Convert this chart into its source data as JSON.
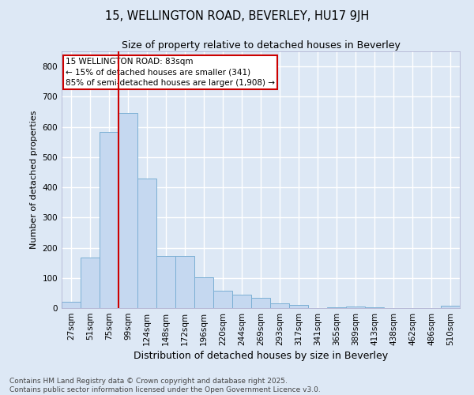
{
  "title": "15, WELLINGTON ROAD, BEVERLEY, HU17 9JH",
  "subtitle": "Size of property relative to detached houses in Beverley",
  "xlabel": "Distribution of detached houses by size in Beverley",
  "ylabel": "Number of detached properties",
  "bar_color": "#c5d8f0",
  "bar_edge_color": "#7bafd4",
  "background_color": "#dde8f5",
  "fig_background_color": "#dde8f5",
  "grid_color": "#ffffff",
  "categories": [
    "27sqm",
    "51sqm",
    "75sqm",
    "99sqm",
    "124sqm",
    "148sqm",
    "172sqm",
    "196sqm",
    "220sqm",
    "244sqm",
    "269sqm",
    "293sqm",
    "317sqm",
    "341sqm",
    "365sqm",
    "389sqm",
    "413sqm",
    "438sqm",
    "462sqm",
    "486sqm",
    "510sqm"
  ],
  "values": [
    22,
    168,
    583,
    645,
    430,
    172,
    172,
    103,
    57,
    45,
    33,
    17,
    10,
    0,
    2,
    5,
    2,
    0,
    0,
    0,
    7
  ],
  "ylim": [
    0,
    850
  ],
  "yticks": [
    0,
    100,
    200,
    300,
    400,
    500,
    600,
    700,
    800
  ],
  "vline_color": "#cc0000",
  "vline_x_index": 2,
  "annotation_text": "15 WELLINGTON ROAD: 83sqm\n← 15% of detached houses are smaller (341)\n85% of semi-detached houses are larger (1,908) →",
  "annotation_box_facecolor": "#ffffff",
  "annotation_box_edgecolor": "#cc0000",
  "footer": "Contains HM Land Registry data © Crown copyright and database right 2025.\nContains public sector information licensed under the Open Government Licence v3.0.",
  "title_fontsize": 10.5,
  "subtitle_fontsize": 9,
  "xlabel_fontsize": 9,
  "ylabel_fontsize": 8,
  "tick_fontsize": 7.5,
  "annotation_fontsize": 7.5,
  "footer_fontsize": 6.5,
  "figsize": [
    6.0,
    5.0
  ],
  "dpi": 100
}
